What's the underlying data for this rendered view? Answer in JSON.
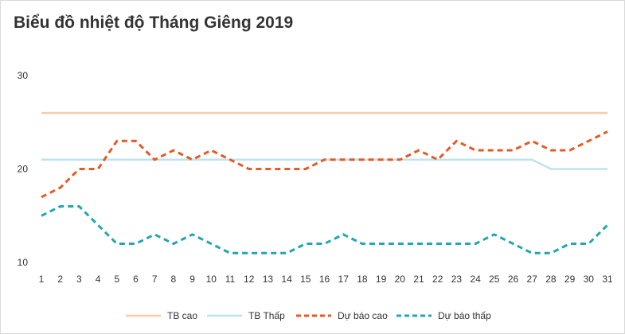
{
  "chart_data": {
    "type": "line",
    "title": "Biểu đồ nhiệt độ Tháng Giêng 2019",
    "xlabel": "",
    "ylabel": "",
    "ylim": [
      10,
      30
    ],
    "yticks": [
      "30",
      "20",
      "10"
    ],
    "categories": [
      "1",
      "2",
      "3",
      "4",
      "5",
      "6",
      "7",
      "8",
      "9",
      "10",
      "11",
      "12",
      "13",
      "14",
      "15",
      "16",
      "17",
      "18",
      "19",
      "20",
      "21",
      "22",
      "23",
      "24",
      "25",
      "26",
      "27",
      "28",
      "29",
      "30",
      "31"
    ],
    "series": [
      {
        "name": "TB cao",
        "color": "#f8cba8",
        "dashed": false,
        "values": [
          26,
          26,
          26,
          26,
          26,
          26,
          26,
          26,
          26,
          26,
          26,
          26,
          26,
          26,
          26,
          26,
          26,
          26,
          26,
          26,
          26,
          26,
          26,
          26,
          26,
          26,
          26,
          26,
          26,
          26,
          26
        ]
      },
      {
        "name": "TB Thấp",
        "color": "#bde4ee",
        "dashed": false,
        "values": [
          21,
          21,
          21,
          21,
          21,
          21,
          21,
          21,
          21,
          21,
          21,
          21,
          21,
          21,
          21,
          21,
          21,
          21,
          21,
          21,
          21,
          21,
          21,
          21,
          21,
          21,
          21,
          20,
          20,
          20,
          20
        ]
      },
      {
        "name": "Dự báo cao",
        "color": "#e55a26",
        "dashed": true,
        "values": [
          17,
          18,
          20,
          20,
          23,
          23,
          21,
          22,
          21,
          22,
          21,
          20,
          20,
          20,
          20,
          21,
          21,
          21,
          21,
          21,
          22,
          21,
          23,
          22,
          22,
          22,
          23,
          22,
          22,
          23,
          24
        ]
      },
      {
        "name": "Dự báo thấp",
        "color": "#22a6b0",
        "dashed": true,
        "values": [
          15,
          16,
          16,
          14,
          12,
          12,
          13,
          12,
          13,
          12,
          11,
          11,
          11,
          11,
          12,
          12,
          13,
          12,
          12,
          12,
          12,
          12,
          12,
          12,
          13,
          12,
          11,
          11,
          12,
          12,
          14
        ]
      }
    ],
    "grid": false,
    "legend": "bottom"
  }
}
